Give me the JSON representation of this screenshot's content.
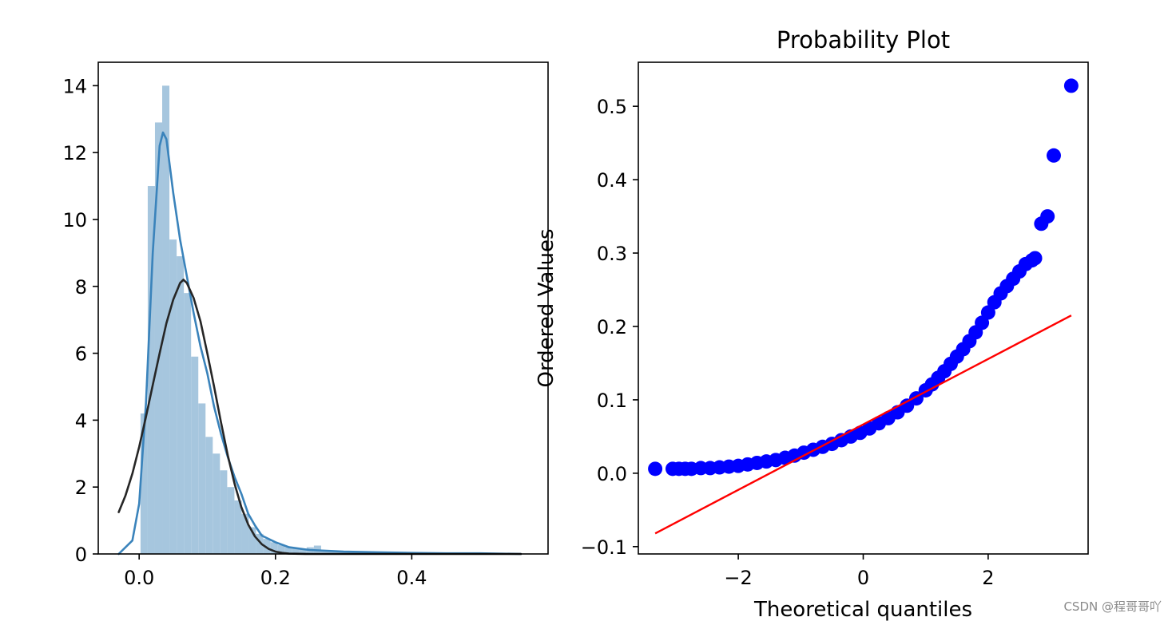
{
  "watermark": "CSDN @程哥哥吖",
  "colors": {
    "hist_fill": "#a6c6de",
    "kde_line": "#3a83bb",
    "norm_fit_line": "#262626",
    "points": "#0000ff",
    "fit_line": "#ff0000",
    "axes": "#000000"
  },
  "chart_data": [
    {
      "type": "bar",
      "kind": "histogram with density curves",
      "title": "",
      "xlabel": "",
      "ylabel": "",
      "xlim": [
        -0.06,
        0.6
      ],
      "ylim": [
        0,
        14.7
      ],
      "xticks": [
        0.0,
        0.2,
        0.4
      ],
      "xtick_labels": [
        "0.0",
        "0.2",
        "0.4"
      ],
      "yticks": [
        0,
        2,
        4,
        6,
        8,
        10,
        12,
        14
      ],
      "ytick_labels": [
        "0",
        "2",
        "4",
        "6",
        "8",
        "10",
        "12",
        "14"
      ],
      "histogram": {
        "bin_edges": [
          0.002,
          0.0126,
          0.0232,
          0.0338,
          0.0444,
          0.055,
          0.0656,
          0.0762,
          0.0868,
          0.0974,
          0.108,
          0.1186,
          0.1292,
          0.1398,
          0.1504,
          0.161,
          0.1716,
          0.1822,
          0.1928,
          0.2034,
          0.214,
          0.2246,
          0.2352,
          0.2458,
          0.2564,
          0.267,
          0.2776,
          0.2882,
          0.2988,
          0.3094,
          0.32,
          0.3306,
          0.3412,
          0.3518,
          0.3624,
          0.373,
          0.3836,
          0.3942,
          0.4048,
          0.4154,
          0.426,
          0.4366,
          0.4472,
          0.4578,
          0.4684,
          0.479,
          0.4896,
          0.5002,
          0.5108,
          0.5214,
          0.532
        ],
        "density": [
          4.2,
          11.0,
          12.9,
          14.0,
          9.4,
          8.9,
          7.8,
          5.9,
          4.5,
          3.5,
          3.0,
          2.5,
          2.0,
          1.6,
          1.2,
          0.8,
          0.6,
          0.45,
          0.35,
          0.27,
          0.2,
          0.17,
          0.15,
          0.2,
          0.25,
          0.12,
          0.08,
          0.06,
          0.05,
          0.04,
          0.04,
          0.05,
          0.04,
          0.03,
          0.03,
          0.02,
          0.02,
          0.02,
          0.02,
          0.01,
          0.02,
          0.01,
          0.01,
          0.02,
          0.01,
          0.02,
          0.01,
          0.01,
          0.01,
          0.01
        ]
      },
      "series": [
        {
          "type": "line",
          "role": "kde",
          "x": [
            -0.03,
            -0.01,
            0.0,
            0.01,
            0.02,
            0.03,
            0.035,
            0.04,
            0.05,
            0.06,
            0.07,
            0.08,
            0.09,
            0.1,
            0.11,
            0.12,
            0.13,
            0.14,
            0.15,
            0.16,
            0.17,
            0.18,
            0.2,
            0.22,
            0.25,
            0.3,
            0.35,
            0.4,
            0.45,
            0.5,
            0.56
          ],
          "y": [
            0.0,
            0.4,
            1.5,
            4.5,
            9.0,
            12.2,
            12.6,
            12.4,
            10.8,
            9.4,
            8.3,
            7.2,
            6.2,
            5.4,
            4.4,
            3.6,
            2.9,
            2.3,
            1.8,
            1.2,
            0.85,
            0.55,
            0.35,
            0.2,
            0.12,
            0.07,
            0.05,
            0.03,
            0.02,
            0.02,
            0.0
          ]
        },
        {
          "type": "line",
          "role": "normal fit",
          "x": [
            -0.03,
            -0.02,
            -0.01,
            0.0,
            0.01,
            0.02,
            0.03,
            0.04,
            0.05,
            0.06,
            0.065,
            0.07,
            0.08,
            0.09,
            0.1,
            0.11,
            0.12,
            0.13,
            0.14,
            0.15,
            0.16,
            0.17,
            0.18,
            0.19,
            0.2,
            0.21,
            0.22,
            0.25,
            0.3,
            0.4,
            0.56
          ],
          "y": [
            1.25,
            1.75,
            2.4,
            3.2,
            4.1,
            5.05,
            6.0,
            6.9,
            7.6,
            8.1,
            8.2,
            8.1,
            7.65,
            6.95,
            6.0,
            5.0,
            3.95,
            2.95,
            2.1,
            1.4,
            0.88,
            0.52,
            0.29,
            0.15,
            0.07,
            0.03,
            0.01,
            0.0,
            0.0,
            0.0,
            0.0
          ]
        }
      ]
    },
    {
      "type": "scatter",
      "title": "Probability Plot",
      "xlabel": "Theoretical quantiles",
      "ylabel": "Ordered Values",
      "xlim": [
        -3.6,
        3.6
      ],
      "ylim": [
        -0.11,
        0.56
      ],
      "xticks": [
        -2,
        0,
        2
      ],
      "xtick_labels": [
        "−2",
        "0",
        "2"
      ],
      "yticks": [
        -0.1,
        0.0,
        0.1,
        0.2,
        0.3,
        0.4,
        0.5
      ],
      "ytick_labels": [
        "−0.1",
        "0.0",
        "0.1",
        "0.2",
        "0.3",
        "0.4",
        "0.5"
      ],
      "points": {
        "x": [
          -3.33,
          -3.05,
          -2.95,
          -2.85,
          -2.75,
          -2.6,
          -2.45,
          -2.3,
          -2.15,
          -2.0,
          -1.85,
          -1.7,
          -1.55,
          -1.4,
          -1.25,
          -1.1,
          -0.95,
          -0.8,
          -0.65,
          -0.5,
          -0.35,
          -0.2,
          -0.05,
          0.1,
          0.25,
          0.4,
          0.55,
          0.7,
          0.85,
          1.0,
          1.1,
          1.2,
          1.3,
          1.4,
          1.5,
          1.6,
          1.7,
          1.8,
          1.9,
          2.0,
          2.1,
          2.2,
          2.3,
          2.4,
          2.5,
          2.6,
          2.7,
          2.75,
          2.85,
          2.95,
          3.05,
          3.33
        ],
        "y": [
          0.006,
          0.006,
          0.006,
          0.006,
          0.006,
          0.007,
          0.007,
          0.008,
          0.009,
          0.01,
          0.012,
          0.014,
          0.016,
          0.018,
          0.021,
          0.024,
          0.028,
          0.032,
          0.036,
          0.04,
          0.045,
          0.05,
          0.055,
          0.061,
          0.068,
          0.075,
          0.083,
          0.092,
          0.102,
          0.113,
          0.121,
          0.13,
          0.139,
          0.149,
          0.159,
          0.169,
          0.18,
          0.192,
          0.205,
          0.219,
          0.233,
          0.245,
          0.255,
          0.265,
          0.275,
          0.285,
          0.29,
          0.293,
          0.34,
          0.35,
          0.433,
          0.528
        ]
      },
      "fit_line": {
        "x": [
          -3.33,
          3.33
        ],
        "y": [
          -0.082,
          0.215
        ]
      }
    }
  ]
}
